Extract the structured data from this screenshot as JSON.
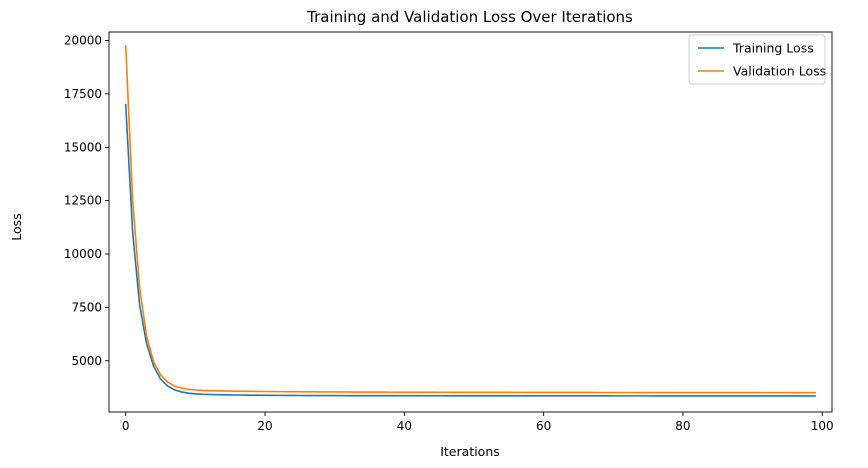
{
  "chart_data": {
    "type": "line",
    "title": "Training and Validation Loss Over Iterations",
    "xlabel": "Iterations",
    "ylabel": "Loss",
    "xlim": [
      -2.4,
      101.4
    ],
    "ylim": [
      2600,
      20400
    ],
    "xticks": [
      0,
      20,
      40,
      60,
      80,
      100
    ],
    "yticks": [
      5000,
      7500,
      10000,
      12500,
      15000,
      17500,
      20000
    ],
    "xtick_labels": [
      "0",
      "20",
      "40",
      "60",
      "80",
      "100"
    ],
    "ytick_labels": [
      "5000",
      "7500",
      "10000",
      "12500",
      "15000",
      "17500",
      "20000"
    ],
    "grid": false,
    "legend_position": "upper-right",
    "x": [
      0,
      1,
      2,
      3,
      4,
      5,
      6,
      7,
      8,
      9,
      10,
      11,
      12,
      13,
      14,
      15,
      16,
      17,
      18,
      19,
      20,
      21,
      22,
      23,
      24,
      25,
      26,
      27,
      28,
      29,
      30,
      31,
      32,
      33,
      34,
      35,
      36,
      37,
      38,
      39,
      40,
      41,
      42,
      43,
      44,
      45,
      46,
      47,
      48,
      49,
      50,
      51,
      52,
      53,
      54,
      55,
      56,
      57,
      58,
      59,
      60,
      61,
      62,
      63,
      64,
      65,
      66,
      67,
      68,
      69,
      70,
      71,
      72,
      73,
      74,
      75,
      76,
      77,
      78,
      79,
      80,
      81,
      82,
      83,
      84,
      85,
      86,
      87,
      88,
      89,
      90,
      91,
      92,
      93,
      94,
      95,
      96,
      97,
      98,
      99
    ],
    "series": [
      {
        "name": "Training Loss",
        "color": "#1f77b4",
        "values": [
          17000,
          11000,
          7600,
          5800,
          4750,
          4150,
          3820,
          3640,
          3540,
          3480,
          3450,
          3430,
          3420,
          3412,
          3405,
          3400,
          3396,
          3392,
          3389,
          3386,
          3383,
          3381,
          3379,
          3377,
          3375,
          3373,
          3372,
          3371,
          3370,
          3369,
          3368,
          3367,
          3366,
          3366,
          3365,
          3365,
          3364,
          3364,
          3363,
          3363,
          3362,
          3362,
          3362,
          3361,
          3361,
          3361,
          3360,
          3360,
          3360,
          3360,
          3359,
          3359,
          3359,
          3359,
          3358,
          3358,
          3358,
          3358,
          3358,
          3357,
          3357,
          3357,
          3357,
          3357,
          3356,
          3356,
          3356,
          3356,
          3356,
          3356,
          3355,
          3355,
          3355,
          3355,
          3355,
          3355,
          3354,
          3354,
          3354,
          3354,
          3354,
          3354,
          3354,
          3353,
          3353,
          3353,
          3353,
          3353,
          3353,
          3353,
          3353,
          3352,
          3352,
          3352,
          3352,
          3352,
          3352,
          3352,
          3352,
          3352
        ]
      },
      {
        "name": "Validation Loss",
        "color": "#ff7f0e",
        "values": [
          19750,
          12500,
          8400,
          6150,
          4950,
          4340,
          4000,
          3820,
          3720,
          3660,
          3630,
          3610,
          3600,
          3592,
          3585,
          3580,
          3575,
          3571,
          3567,
          3563,
          3560,
          3557,
          3554,
          3552,
          3550,
          3548,
          3546,
          3544,
          3542,
          3541,
          3540,
          3538,
          3537,
          3536,
          3535,
          3534,
          3533,
          3532,
          3531,
          3530,
          3529,
          3528,
          3528,
          3527,
          3526,
          3525,
          3525,
          3524,
          3523,
          3523,
          3522,
          3522,
          3521,
          3521,
          3520,
          3520,
          3519,
          3519,
          3518,
          3518,
          3517,
          3517,
          3517,
          3516,
          3516,
          3515,
          3515,
          3515,
          3514,
          3514,
          3514,
          3513,
          3513,
          3513,
          3512,
          3512,
          3512,
          3512,
          3511,
          3511,
          3511,
          3511,
          3510,
          3510,
          3510,
          3510,
          3509,
          3509,
          3509,
          3509,
          3509,
          3508,
          3508,
          3508,
          3508,
          3508,
          3507,
          3507,
          3507,
          3507
        ]
      }
    ]
  }
}
